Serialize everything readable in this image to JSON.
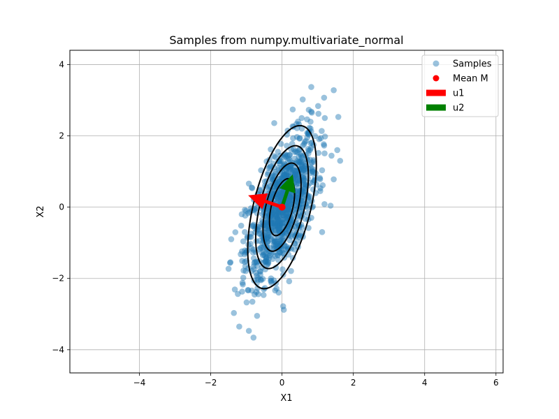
{
  "chart_data": {
    "type": "scatter",
    "title": "Samples from numpy.multivariate_normal",
    "xlabel": "X1",
    "ylabel": "X2",
    "xlim": [
      -5.95,
      6.2
    ],
    "ylim": [
      -4.65,
      4.4
    ],
    "xticks": [
      -4,
      -2,
      0,
      2,
      4,
      6
    ],
    "yticks": [
      -4,
      -2,
      0,
      2,
      4
    ],
    "xtick_labels": [
      "−4",
      "−2",
      "0",
      "2",
      "4",
      "6"
    ],
    "ytick_labels": [
      "−4",
      "−2",
      "0",
      "2",
      "4"
    ],
    "grid": true,
    "legend_position": "top-right",
    "legend": [
      {
        "label": "Samples",
        "marker": "circle",
        "color": "#1f77b4",
        "alpha": 0.45
      },
      {
        "label": "Mean M",
        "marker": "circle",
        "color": "#ff0000",
        "alpha": 1
      },
      {
        "label": "u1",
        "marker": "patch",
        "color": "#ff0000",
        "alpha": 1
      },
      {
        "label": "u2",
        "marker": "patch",
        "color": "#008000",
        "alpha": 1
      }
    ],
    "samples": {
      "name": "Samples",
      "color": "#1f77b4",
      "count": 1000,
      "mean": [
        0.0,
        0.0
      ],
      "covariance": [
        [
          0.25,
          0.3
        ],
        [
          0.3,
          1.0
        ]
      ],
      "notable_points": [
        [
          0.82,
          3.37
        ],
        [
          1.45,
          3.28
        ],
        [
          1.18,
          3.07
        ],
        [
          0.58,
          3.02
        ],
        [
          0.75,
          2.73
        ],
        [
          0.3,
          2.74
        ],
        [
          0.55,
          2.5
        ],
        [
          0.82,
          2.68
        ],
        [
          1.2,
          2.5
        ],
        [
          -0.93,
          0.66
        ],
        [
          -0.85,
          0.55
        ],
        [
          -1.13,
          -0.2
        ],
        [
          -1.5,
          -1.73
        ],
        [
          -1.35,
          -2.97
        ],
        [
          -1.2,
          -3.35
        ],
        [
          -0.93,
          -3.47
        ],
        [
          -0.8,
          -3.66
        ],
        [
          -0.7,
          -3.05
        ],
        [
          0.03,
          -2.78
        ],
        [
          0.05,
          -2.88
        ],
        [
          1.55,
          1.6
        ],
        [
          1.63,
          1.3
        ],
        [
          1.45,
          0.78
        ],
        [
          -1.1,
          -2.17
        ],
        [
          0.2,
          -2.08
        ]
      ]
    },
    "mean_point": {
      "name": "Mean M",
      "x": 0.0,
      "y": 0.0,
      "color": "#ff0000"
    },
    "contour_ellipses": [
      {
        "center": [
          0,
          0
        ],
        "semi_axes": [
          0.8,
          2.35
        ],
        "angle_from_y_deg": 14
      },
      {
        "center": [
          0,
          0
        ],
        "semi_axes": [
          0.62,
          1.77
        ],
        "angle_from_y_deg": 14
      },
      {
        "center": [
          0,
          0
        ],
        "semi_axes": [
          0.45,
          1.27
        ],
        "angle_from_y_deg": 14
      },
      {
        "center": [
          0,
          0
        ],
        "semi_axes": [
          0.3,
          0.82
        ],
        "angle_from_y_deg": 14
      }
    ],
    "vectors": [
      {
        "name": "u1",
        "start": [
          0,
          0
        ],
        "end": [
          -0.95,
          0.33
        ],
        "color": "#ff0000"
      },
      {
        "name": "u2",
        "start": [
          0,
          0
        ],
        "end": [
          0.3,
          0.92
        ],
        "color": "#008000"
      }
    ]
  }
}
